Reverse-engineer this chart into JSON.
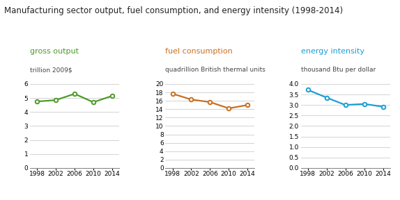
{
  "title": "Manufacturing sector output, fuel consumption, and energy intensity (1998-2014)",
  "title_fontsize": 8.5,
  "panels": [
    {
      "label": "gross output",
      "label_color": "#4d9a29",
      "ylabel": "trillion 2009$",
      "years": [
        1998,
        2002,
        2006,
        2010,
        2014
      ],
      "values": [
        4.75,
        4.85,
        5.3,
        4.7,
        5.15
      ],
      "color": "#4d9a29",
      "ylim": [
        0,
        6
      ],
      "yticks": [
        0,
        1,
        2,
        3,
        4,
        5,
        6
      ]
    },
    {
      "label": "fuel consumption",
      "label_color": "#c87020",
      "ylabel": "quadrillion British thermal units",
      "years": [
        1998,
        2002,
        2006,
        2010,
        2014
      ],
      "values": [
        17.7,
        16.3,
        15.7,
        14.2,
        15.0
      ],
      "color": "#c87020",
      "ylim": [
        0,
        20
      ],
      "yticks": [
        0,
        2,
        4,
        6,
        8,
        10,
        12,
        14,
        16,
        18,
        20
      ]
    },
    {
      "label": "energy intensity",
      "label_color": "#1a9fd4",
      "ylabel": "thousand Btu per dollar",
      "years": [
        1998,
        2002,
        2006,
        2010,
        2014
      ],
      "values": [
        3.72,
        3.35,
        3.0,
        3.05,
        2.92
      ],
      "color": "#1a9fd4",
      "ylim": [
        0.0,
        4.0
      ],
      "yticks": [
        0.0,
        0.5,
        1.0,
        1.5,
        2.0,
        2.5,
        3.0,
        3.5,
        4.0
      ]
    }
  ],
  "xticks": [
    1998,
    2002,
    2006,
    2010,
    2014
  ],
  "xtick_labels": [
    "1998",
    "2002",
    "2006",
    "2010",
    "2014"
  ],
  "bg_color": "#ffffff",
  "grid_color": "#cccccc",
  "marker": "o",
  "marker_face": "white",
  "marker_size": 4,
  "line_width": 1.6
}
